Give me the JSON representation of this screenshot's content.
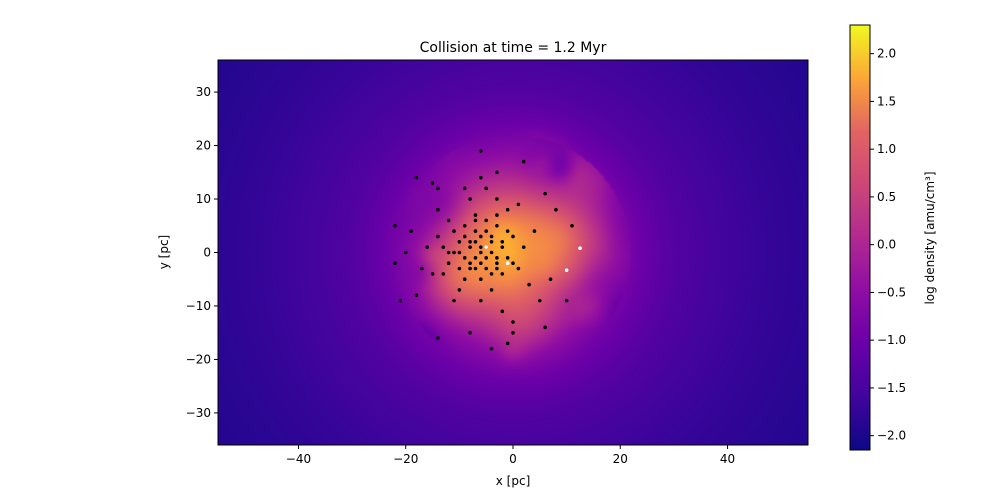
{
  "chart_data": {
    "type": "heatmap",
    "title": "Collision at time = 1.2 Myr",
    "xlabel": "x [pc]",
    "ylabel": "y [pc]",
    "colorbar_label": "log density [amu/cm³]",
    "colormap": "plasma",
    "xlim": [
      -55,
      55
    ],
    "ylim": [
      -36,
      36
    ],
    "clim": [
      -2.15,
      2.3
    ],
    "x_ticks": [
      -40,
      -20,
      0,
      20,
      40
    ],
    "x_tick_labels": [
      "−40",
      "−20",
      "0",
      "20",
      "40"
    ],
    "y_ticks": [
      -30,
      -20,
      -10,
      0,
      10,
      20,
      30
    ],
    "y_tick_labels": [
      "−30",
      "−20",
      "−10",
      "0",
      "10",
      "20",
      "30"
    ],
    "colorbar_ticks": [
      -2.0,
      -1.5,
      -1.0,
      -0.5,
      0.0,
      0.5,
      1.0,
      1.5,
      2.0
    ],
    "colorbar_tick_labels": [
      "−2.0",
      "−1.5",
      "−1.0",
      "−0.5",
      "0.0",
      "0.5",
      "1.0",
      "1.5",
      "2.0"
    ],
    "density_field": {
      "description_units": "log density [amu/cm^3]",
      "clouds": [
        {
          "x": 0.0,
          "y": 0.0,
          "sigma": 11.0,
          "peak": 1.55
        },
        {
          "x": -4.0,
          "y": 0.0,
          "sigma": 6.0,
          "peak": 0.55
        },
        {
          "x": 10.0,
          "y": 3.0,
          "sigma": 5.0,
          "peak": 0.45
        },
        {
          "x": -10.0,
          "y": -4.0,
          "sigma": 4.0,
          "peak": 0.35
        },
        {
          "x": 2.0,
          "y": -14.0,
          "sigma": 4.0,
          "peak": 0.3
        },
        {
          "x": 5.0,
          "y": 18.0,
          "sigma": 3.0,
          "peak": 0.25
        }
      ],
      "background_base": -2.15,
      "background_halo": {
        "peak": 1.7,
        "scale": 30.0
      }
    },
    "stars_black": [
      [
        -6,
        0
      ],
      [
        -5,
        1
      ],
      [
        -7,
        -1
      ],
      [
        -4,
        2
      ],
      [
        -8,
        1
      ],
      [
        -3,
        -2
      ],
      [
        -6,
        3
      ],
      [
        -5,
        -3
      ],
      [
        -9,
        -1
      ],
      [
        -2,
        1
      ],
      [
        -7,
        4
      ],
      [
        -4,
        -4
      ],
      [
        -10,
        2
      ],
      [
        -1,
        -1
      ],
      [
        -6,
        -5
      ],
      [
        -3,
        5
      ],
      [
        -11,
        0
      ],
      [
        -8,
        -3
      ],
      [
        -2,
        -4
      ],
      [
        -5,
        6
      ],
      [
        -12,
        -2
      ],
      [
        0,
        3
      ],
      [
        -9,
        5
      ],
      [
        -4,
        -7
      ],
      [
        -13,
        1
      ],
      [
        1,
        -3
      ],
      [
        -7,
        7
      ],
      [
        -1,
        8
      ],
      [
        -14,
        3
      ],
      [
        2,
        1
      ],
      [
        -10,
        -7
      ],
      [
        -6,
        -9
      ],
      [
        -3,
        10
      ],
      [
        -15,
        -4
      ],
      [
        3,
        -6
      ],
      [
        -8,
        10
      ],
      [
        -12,
        6
      ],
      [
        1,
        9
      ],
      [
        -16,
        1
      ],
      [
        -11,
        -9
      ],
      [
        -5,
        12
      ],
      [
        4,
        4
      ],
      [
        -2,
        -11
      ],
      [
        -17,
        -3
      ],
      [
        -9,
        12
      ],
      [
        0,
        -13
      ],
      [
        5,
        -9
      ],
      [
        -14,
        8
      ],
      [
        -6,
        14
      ],
      [
        -19,
        4
      ],
      [
        -20,
        0
      ],
      [
        -22,
        -2
      ],
      [
        -22,
        5
      ],
      [
        -18,
        14
      ],
      [
        -15,
        13
      ],
      [
        -14,
        12
      ],
      [
        -6,
        19
      ],
      [
        2,
        17
      ],
      [
        -3,
        15
      ],
      [
        -8,
        -15
      ],
      [
        -14,
        -16
      ],
      [
        -4,
        -18
      ],
      [
        -1,
        -17
      ],
      [
        0,
        -15
      ],
      [
        6,
        -14
      ],
      [
        7,
        -5
      ],
      [
        10,
        -9
      ],
      [
        8,
        8
      ],
      [
        11,
        5
      ],
      [
        6,
        11
      ],
      [
        -18,
        -8
      ],
      [
        -21,
        -9
      ],
      [
        -10,
        0
      ],
      [
        -8,
        2
      ],
      [
        -6,
        -2
      ],
      [
        -4,
        0
      ],
      [
        -5,
        -1
      ],
      [
        -7,
        2
      ],
      [
        -3,
        -1
      ],
      [
        -9,
        3
      ],
      [
        -6,
        1
      ],
      [
        -4,
        3
      ],
      [
        -8,
        -2
      ],
      [
        -2,
        2
      ],
      [
        -7,
        -3
      ],
      [
        -5,
        4
      ],
      [
        -3,
        -3
      ],
      [
        -10,
        -3
      ],
      [
        -11,
        4
      ],
      [
        -1,
        4
      ],
      [
        -12,
        0
      ],
      [
        0,
        -2
      ],
      [
        -9,
        -5
      ],
      [
        -7,
        6
      ],
      [
        -3,
        7
      ],
      [
        -13,
        -4
      ]
    ],
    "stars_white": [
      [
        12.5,
        0.8
      ],
      [
        10,
        -3.3
      ],
      [
        -1,
        -2
      ],
      [
        -5,
        1
      ]
    ]
  }
}
